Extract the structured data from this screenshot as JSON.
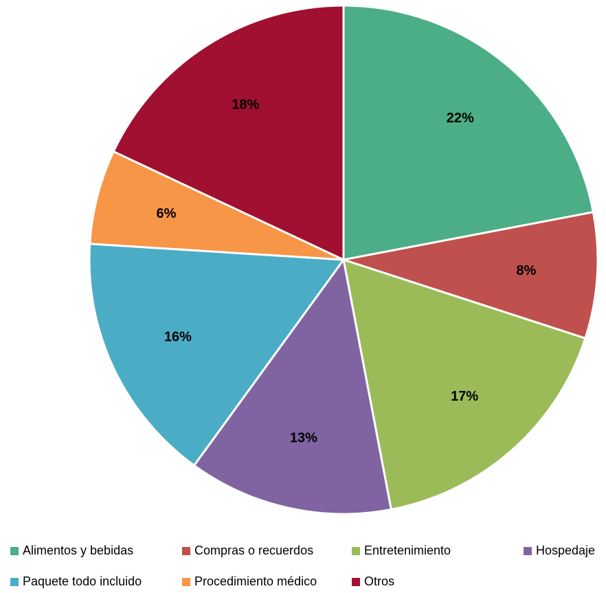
{
  "chart_data": {
    "type": "pie",
    "categories": [
      "Alimentos y bebidas",
      "Compras o recuerdos",
      "Entretenimiento",
      "Hospedaje",
      "Paquete todo incluido",
      "Procedimiento médico",
      "Otros"
    ],
    "values": [
      22,
      8,
      17,
      13,
      16,
      6,
      18
    ],
    "value_labels": [
      "22%",
      "8%",
      "17%",
      "13%",
      "16%",
      "6%",
      "18%"
    ],
    "colors": [
      "#4BAE86",
      "#C0504D",
      "#9BBB59",
      "#8064A2",
      "#4BACC6",
      "#F79646",
      "#A11030"
    ],
    "legend": "bottom"
  }
}
